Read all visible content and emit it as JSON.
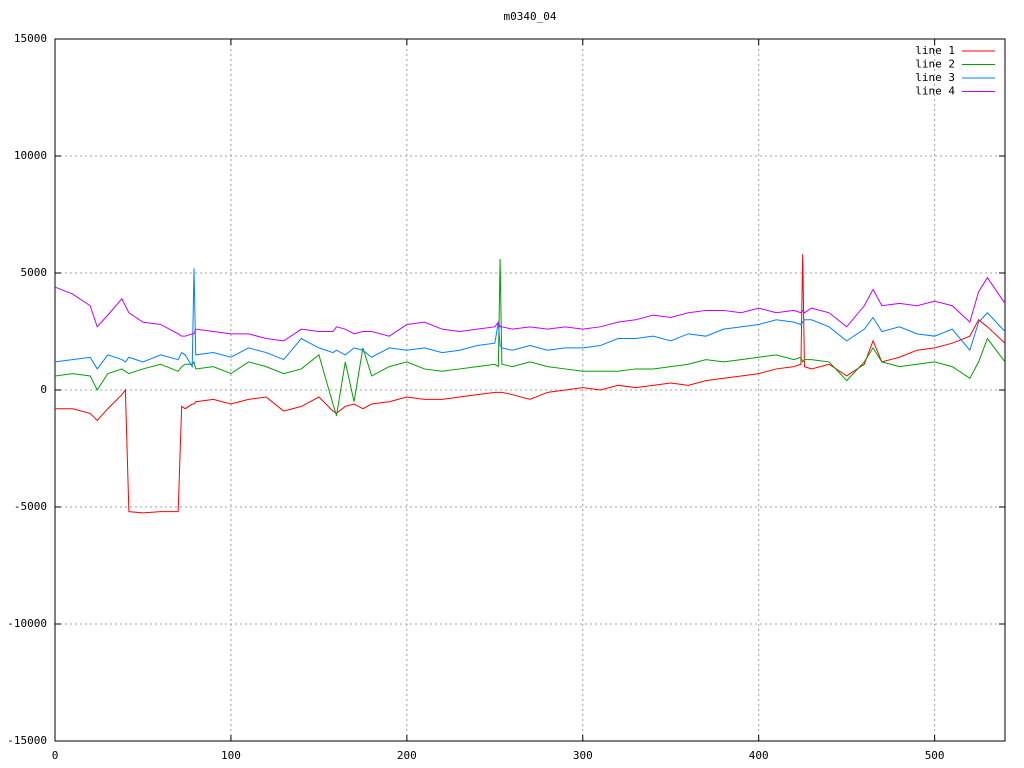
{
  "chart_data": {
    "type": "line",
    "title": "m0340_04",
    "x": [
      0,
      10,
      20,
      24,
      30,
      38,
      40,
      42,
      50,
      60,
      70,
      72,
      74,
      78,
      79,
      80,
      90,
      100,
      110,
      120,
      130,
      140,
      150,
      158,
      160,
      165,
      170,
      175,
      180,
      190,
      200,
      210,
      220,
      230,
      240,
      250,
      252,
      253,
      254,
      260,
      270,
      280,
      290,
      300,
      310,
      320,
      330,
      340,
      350,
      360,
      370,
      380,
      390,
      400,
      410,
      420,
      424,
      425,
      426,
      430,
      440,
      450,
      460,
      465,
      470,
      480,
      490,
      500,
      510,
      520,
      525,
      530,
      540
    ],
    "series": [
      {
        "name": "line 1",
        "color": "#ff0000",
        "values": [
          -800,
          -800,
          -1000,
          -1300,
          -800,
          -200,
          0,
          -5200,
          -5250,
          -5200,
          -5200,
          -700,
          -800,
          -600,
          -600,
          -500,
          -400,
          -600,
          -400,
          -300,
          -900,
          -700,
          -300,
          -900,
          -1000,
          -700,
          -600,
          -800,
          -600,
          -500,
          -300,
          -400,
          -400,
          -300,
          -200,
          -100,
          -100,
          -100,
          -100,
          -200,
          -400,
          -100,
          0,
          100,
          0,
          200,
          100,
          200,
          300,
          200,
          400,
          500,
          600,
          700,
          900,
          1000,
          1100,
          5800,
          1000,
          900,
          1100,
          600,
          1100,
          2100,
          1200,
          1400,
          1700,
          1800,
          2000,
          2300,
          3000,
          2700,
          2000
        ]
      },
      {
        "name": "line 2",
        "color": "#00a000",
        "values": [
          600,
          700,
          600,
          0,
          700,
          900,
          800,
          700,
          900,
          1100,
          800,
          1000,
          1100,
          1100,
          1200,
          900,
          1000,
          700,
          1200,
          1000,
          700,
          900,
          1500,
          -600,
          -1100,
          1200,
          -500,
          1800,
          600,
          1000,
          1200,
          900,
          800,
          900,
          1000,
          1100,
          1000,
          5600,
          1100,
          1000,
          1200,
          1000,
          900,
          800,
          800,
          800,
          900,
          900,
          1000,
          1100,
          1300,
          1200,
          1300,
          1400,
          1500,
          1300,
          1400,
          1200,
          1300,
          1300,
          1200,
          400,
          1200,
          1800,
          1200,
          1000,
          1100,
          1200,
          1000,
          500,
          1200,
          2200,
          1200
        ]
      },
      {
        "name": "line 3",
        "color": "#0080ff",
        "values": [
          1200,
          1300,
          1400,
          900,
          1500,
          1300,
          1200,
          1400,
          1200,
          1500,
          1300,
          1600,
          1500,
          1000,
          5200,
          1500,
          1600,
          1400,
          1800,
          1600,
          1300,
          2200,
          1800,
          1600,
          1700,
          1500,
          1800,
          1700,
          1400,
          1800,
          1700,
          1800,
          1600,
          1700,
          1900,
          2000,
          2900,
          1900,
          1800,
          1700,
          1900,
          1700,
          1800,
          1800,
          1900,
          2200,
          2200,
          2300,
          2100,
          2400,
          2300,
          2600,
          2700,
          2800,
          3000,
          2900,
          2800,
          2900,
          3000,
          3000,
          2700,
          2100,
          2600,
          3100,
          2500,
          2700,
          2400,
          2300,
          2600,
          1700,
          2900,
          3300,
          2500
        ]
      },
      {
        "name": "line 4",
        "color": "#c000ff",
        "values": [
          4400,
          4100,
          3600,
          2700,
          3200,
          3900,
          3600,
          3300,
          2900,
          2800,
          2400,
          2300,
          2300,
          2400,
          2400,
          2600,
          2500,
          2400,
          2400,
          2200,
          2100,
          2600,
          2500,
          2500,
          2700,
          2600,
          2400,
          2500,
          2500,
          2300,
          2800,
          2900,
          2600,
          2500,
          2600,
          2700,
          2900,
          2700,
          2700,
          2600,
          2700,
          2600,
          2700,
          2600,
          2700,
          2900,
          3000,
          3200,
          3100,
          3300,
          3400,
          3400,
          3300,
          3500,
          3300,
          3400,
          3300,
          3400,
          3300,
          3500,
          3300,
          2700,
          3600,
          4300,
          3600,
          3700,
          3600,
          3800,
          3600,
          2900,
          4200,
          4800,
          3700
        ]
      }
    ],
    "xlim": [
      0,
      540
    ],
    "xticks": [
      0,
      100,
      200,
      300,
      400,
      500
    ],
    "ylim": [
      -15000,
      15000
    ],
    "yticks": [
      -15000,
      -10000,
      -5000,
      0,
      5000,
      10000,
      15000
    ],
    "grid": true
  }
}
